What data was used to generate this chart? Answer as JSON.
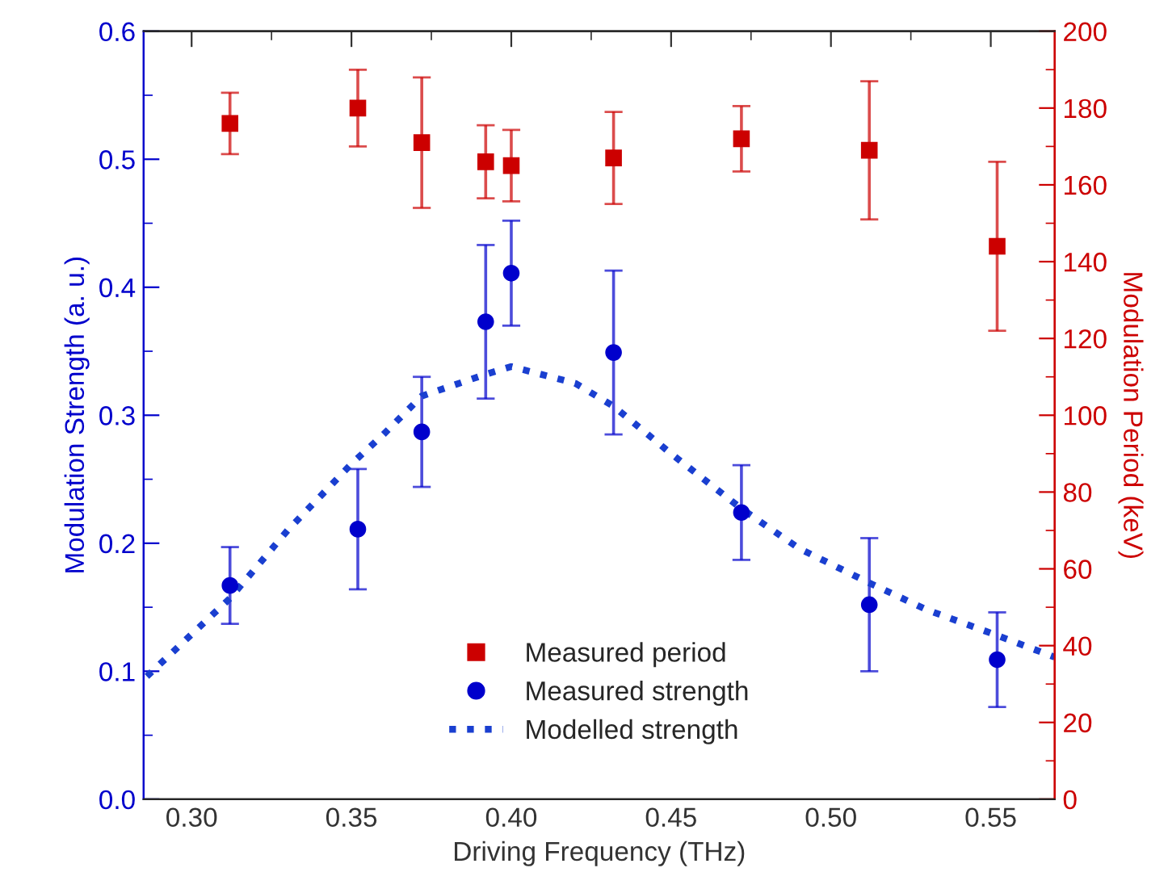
{
  "chart_data": {
    "type": "scatter",
    "xlabel": "Driving Frequency (THz)",
    "ylabel": "Modulation Strength (a. u.)",
    "y2label": "Modulation Period (keV)",
    "xlim": [
      0.285,
      0.57
    ],
    "xticks": [
      {
        "value": 0.3,
        "label": "0.30"
      },
      0.35,
      {
        "value": 0.4,
        "label": "0.40"
      },
      0.45,
      {
        "value": 0.5,
        "label": "0.50"
      },
      0.55
    ],
    "ylim": [
      0,
      0.6
    ],
    "yticks": [
      {
        "value": 0,
        "label": "0.0"
      },
      0.1,
      0.2,
      0.3,
      0.4,
      0.5,
      0.6
    ],
    "y2lim": [
      0,
      200
    ],
    "y2ticks": [
      0,
      20,
      40,
      60,
      80,
      100,
      120,
      140,
      160,
      180,
      200
    ],
    "legend": "bottom",
    "grid": false,
    "series": [
      {
        "name": "Measured period",
        "axis": "y2",
        "marker": "square",
        "color": "#cc0000",
        "x": [
          0.312,
          0.352,
          0.372,
          0.392,
          0.4,
          0.432,
          0.472,
          0.512,
          0.552
        ],
        "values": [
          176,
          180,
          171,
          166,
          165,
          167,
          172,
          169,
          144
        ],
        "errors": [
          8,
          10,
          17,
          9.5,
          9.3,
          12,
          8.5,
          18,
          22
        ]
      },
      {
        "name": "Measured strength",
        "marker": "circle",
        "color": "#0000cc",
        "x": [
          0.312,
          0.352,
          0.372,
          0.392,
          0.4,
          0.432,
          0.472,
          0.512,
          0.552
        ],
        "values": [
          0.167,
          0.211,
          0.287,
          0.373,
          0.411,
          0.349,
          0.224,
          0.152,
          0.109
        ],
        "errors": [
          0.03,
          0.047,
          0.043,
          0.06,
          0.041,
          0.064,
          0.037,
          0.052,
          0.037
        ]
      },
      {
        "name": "Modelled strength",
        "type": "line",
        "line_style": "dotted",
        "color": "#1a3fd0",
        "x": [
          0.286,
          0.312,
          0.33,
          0.35,
          0.36,
          0.372,
          0.392,
          0.4,
          0.42,
          0.432,
          0.45,
          0.472,
          0.49,
          0.512,
          0.53,
          0.552,
          0.57
        ],
        "values": [
          0.096,
          0.157,
          0.21,
          0.262,
          0.285,
          0.315,
          0.332,
          0.338,
          0.325,
          0.307,
          0.27,
          0.227,
          0.196,
          0.169,
          0.148,
          0.128,
          0.111
        ]
      }
    ]
  }
}
